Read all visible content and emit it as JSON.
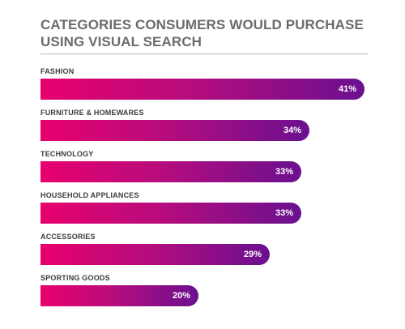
{
  "chart_data": {
    "type": "bar",
    "orientation": "horizontal",
    "title": "CATEGORIES CONSUMERS WOULD PURCHASE USING VISUAL SEARCH",
    "categories": [
      "FASHION",
      "FURNITURE & HOMEWARES",
      "TECHNOLOGY",
      "HOUSEHOLD APPLIANCES",
      "ACCESSORIES",
      "SPORTING GOODS"
    ],
    "values": [
      41,
      34,
      33,
      33,
      29,
      20
    ],
    "value_labels": [
      "41%",
      "34%",
      "33%",
      "33%",
      "29%",
      "20%"
    ],
    "xlim": [
      0,
      41
    ],
    "grid": false,
    "legend": "none",
    "colors": {
      "bar_start": "#e8006e",
      "bar_end": "#6a1090",
      "title": "#6b6b6b",
      "label": "#3c3c3c"
    }
  }
}
